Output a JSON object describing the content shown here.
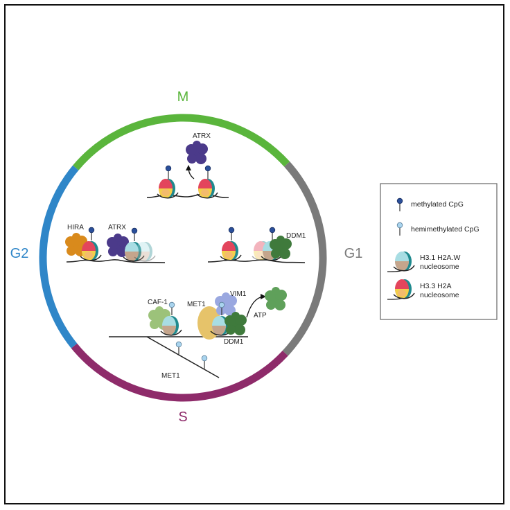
{
  "phases": {
    "m": {
      "label": "M",
      "color": "#5ab53c"
    },
    "g1": {
      "label": "G1",
      "color": "#7a7a7a"
    },
    "s": {
      "label": "S",
      "color": "#8e2b6a"
    },
    "g2": {
      "label": "G2",
      "color": "#2f86c8"
    }
  },
  "proteins": {
    "atrx": "ATRX",
    "hira": "HIRA",
    "ddm1": "DDM1",
    "caf1": "CAF-1",
    "met1": "MET1",
    "vim1": "VIM1",
    "atp": "ATP"
  },
  "legend": {
    "methylated": "methylated CpG",
    "hemimethylated": "hemimethylated CpG",
    "h31_line1": "H3.1 H2A.W",
    "h31_line2": "nucleosome",
    "h33_line1": "H3.3 H2A",
    "h33_line2": "nucleosome"
  },
  "colors": {
    "atrx": "#4b3a8a",
    "hira": "#d98a1c",
    "ddm1": "#3f7a3c",
    "caf1": "#9cc27a",
    "met1": "#e6c36a",
    "vim1": "#9aa8e0",
    "methylated": "#2a4f9a",
    "hemimethylated": "#a9d4ee"
  }
}
